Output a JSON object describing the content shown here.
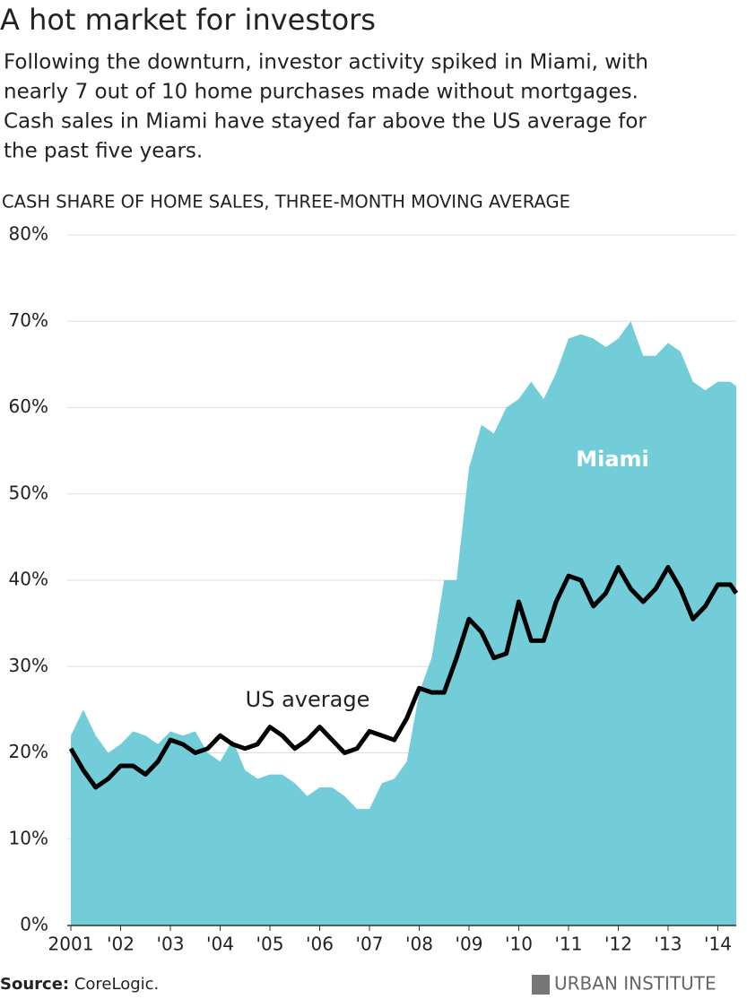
{
  "chart_data": {
    "type": "line",
    "title": "A hot market for investors",
    "subtitle": [
      "Following the downturn, investor activity spiked in Miami, with",
      "nearly 7 out of 10 home purchases made without mortgages.",
      "Cash sales in Miami have stayed far above the US average for",
      "the past five years."
    ],
    "y_axis_title": "CASH SHARE OF HOME SALES, THREE-MONTH MOVING AVERAGE",
    "source_label": "Source:",
    "source": "CoreLogic.",
    "brand": "URBAN INSTITUTE",
    "x": [
      2001,
      2001.25,
      2001.5,
      2001.75,
      2002,
      2002.25,
      2002.5,
      2002.75,
      2003,
      2003.25,
      2003.5,
      2003.75,
      2004,
      2004.25,
      2004.5,
      2004.75,
      2005,
      2005.25,
      2005.5,
      2005.75,
      2006,
      2006.25,
      2006.5,
      2006.75,
      2007,
      2007.25,
      2007.5,
      2007.75,
      2008,
      2008.25,
      2008.5,
      2008.75,
      2009,
      2009.25,
      2009.5,
      2009.75,
      2010,
      2010.25,
      2010.5,
      2010.75,
      2011,
      2011.25,
      2011.5,
      2011.75,
      2012,
      2012.25,
      2012.5,
      2012.75,
      2013,
      2013.25,
      2013.5,
      2013.75,
      2014,
      2014.25,
      2014.37
    ],
    "series": [
      {
        "name": "Miami",
        "type": "area",
        "color": "#73cdd8",
        "values": [
          22,
          25,
          22,
          20,
          21,
          22.5,
          22,
          21,
          22.5,
          22,
          22.5,
          20,
          19,
          21.5,
          18,
          17,
          17.5,
          17.5,
          16.5,
          15,
          16,
          16,
          15,
          13.5,
          13.5,
          16.5,
          17,
          19,
          27,
          31,
          40,
          40,
          53,
          58,
          57,
          60,
          61,
          63,
          61,
          64,
          68,
          68.5,
          68,
          67,
          68,
          70,
          66,
          66,
          67.5,
          66.5,
          63,
          62,
          63,
          63,
          62.5
        ]
      },
      {
        "name": "US average",
        "type": "line",
        "color": "#000000",
        "values": [
          20.5,
          18,
          16,
          17,
          18.5,
          18.5,
          17.5,
          19,
          21.5,
          21,
          20,
          20.5,
          22,
          21,
          20.5,
          21,
          23,
          22,
          20.5,
          21.5,
          23,
          21.5,
          20,
          20.5,
          22.5,
          22,
          21.5,
          24,
          27.5,
          27,
          27,
          31,
          35.5,
          34,
          31,
          31.5,
          37.5,
          33,
          33,
          37.5,
          40.5,
          40,
          37,
          38.5,
          41.5,
          39,
          37.5,
          39,
          41.5,
          39,
          35.5,
          37,
          39.5,
          39.5,
          38.5
        ]
      }
    ],
    "xlim": [
      2001,
      2014.37
    ],
    "xticks": [
      {
        "value": 2001,
        "label": "2001"
      },
      {
        "value": 2002,
        "label": "'02"
      },
      {
        "value": 2003,
        "label": "'03"
      },
      {
        "value": 2004,
        "label": "'04"
      },
      {
        "value": 2005,
        "label": "'05"
      },
      {
        "value": 2006,
        "label": "'06"
      },
      {
        "value": 2007,
        "label": "'07"
      },
      {
        "value": 2008,
        "label": "'08"
      },
      {
        "value": 2009,
        "label": "'09"
      },
      {
        "value": 2010,
        "label": "'10"
      },
      {
        "value": 2011,
        "label": "'11"
      },
      {
        "value": 2012,
        "label": "'12"
      },
      {
        "value": 2013,
        "label": "'13"
      },
      {
        "value": 2014,
        "label": "'14"
      }
    ],
    "ylim": [
      0,
      80
    ],
    "yticks": [
      {
        "value": 0,
        "label": "0%"
      },
      {
        "value": 10,
        "label": "10%"
      },
      {
        "value": 20,
        "label": "20%"
      },
      {
        "value": 30,
        "label": "30%"
      },
      {
        "value": 40,
        "label": "40%"
      },
      {
        "value": 50,
        "label": "50%"
      },
      {
        "value": 60,
        "label": "60%"
      },
      {
        "value": 70,
        "label": "70%"
      },
      {
        "value": 80,
        "label": "80%"
      }
    ],
    "grid": true
  }
}
